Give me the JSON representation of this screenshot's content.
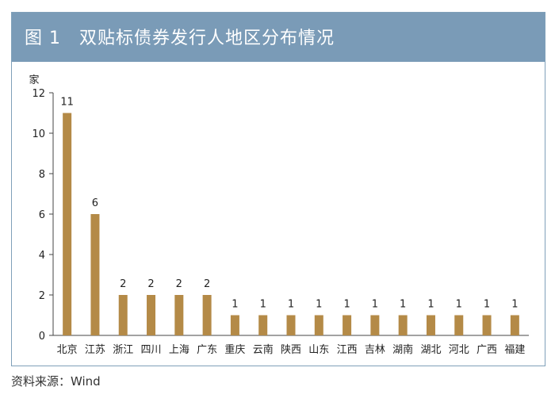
{
  "title": "图 1　双贴标债券发行人地区分布情况",
  "source": "资料来源：Wind",
  "chart_data": {
    "type": "bar",
    "ylabel": "家",
    "xlabel": "",
    "ylim": [
      0,
      12
    ],
    "yticks": [
      0,
      2,
      4,
      6,
      8,
      10,
      12
    ],
    "categories": [
      "北京",
      "江苏",
      "浙江",
      "四川",
      "上海",
      "广东",
      "重庆",
      "云南",
      "陕西",
      "山东",
      "江西",
      "吉林",
      "湖南",
      "湖北",
      "河北",
      "广西",
      "福建"
    ],
    "values": [
      11,
      6,
      2,
      2,
      2,
      2,
      1,
      1,
      1,
      1,
      1,
      1,
      1,
      1,
      1,
      1,
      1
    ],
    "bar_color": "#b48a47",
    "show_data_labels": true,
    "grid": false,
    "legend": "none"
  }
}
